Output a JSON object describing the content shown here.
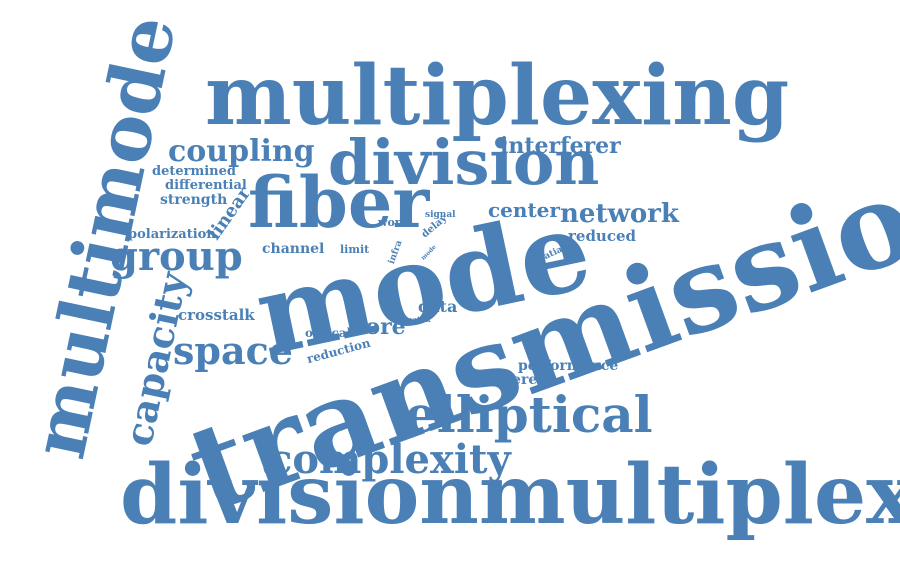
{
  "colors": {
    "word": "#4a80b6",
    "background": "#ffffff"
  },
  "words": [
    "multiplexing",
    "multimode",
    "division",
    "fiber",
    "mode",
    "transmission",
    "divisionmultiplexing",
    "elliptical",
    "complexity",
    "capacity",
    "group",
    "space",
    "coupling",
    "interferer",
    "network",
    "center",
    "reduced",
    "determined",
    "differential",
    "strength",
    "linear",
    "polarization",
    "channel",
    "limit",
    "worst",
    "signal",
    "delay",
    "infra",
    "mode",
    "ratio",
    "spatial",
    "crosstalk",
    "core",
    "data",
    "matrix",
    "optical",
    "reduction",
    "performance",
    "coherent"
  ]
}
